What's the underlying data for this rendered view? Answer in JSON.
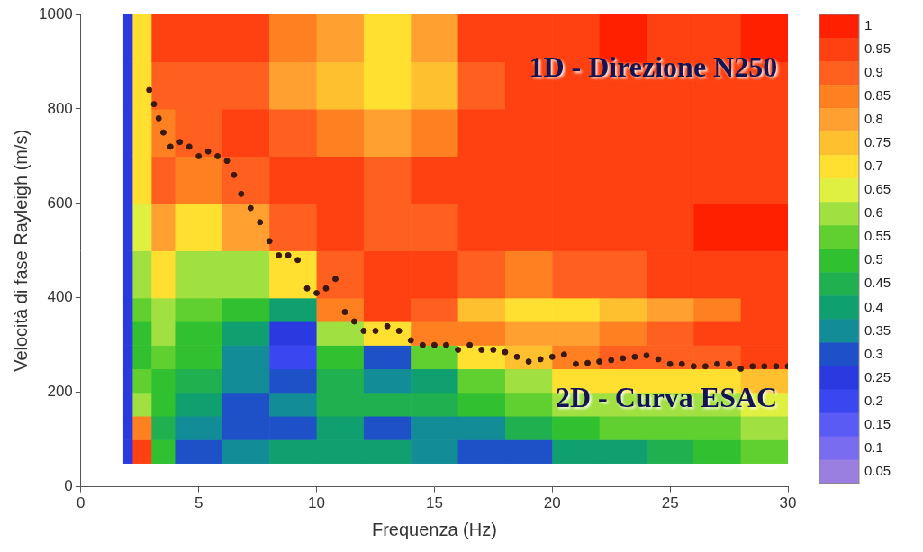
{
  "chart_data": {
    "type": "heatmap",
    "x_label": "Frequenza (Hz)",
    "y_label": "Velocità di fase Rayleigh (m/s)",
    "annotations": [
      "1D - Direzione N250",
      "2D - Curva ESAC"
    ],
    "xlim": [
      0,
      30
    ],
    "xticks": [
      0,
      5,
      10,
      15,
      20,
      25,
      30
    ],
    "ylim": [
      0,
      1000
    ],
    "yticks": [
      0,
      200,
      400,
      600,
      800,
      1000
    ],
    "grid": false,
    "cells": {
      "x_edges": [
        1.8,
        2.2,
        3,
        4,
        6,
        8,
        10,
        12,
        14,
        16,
        18,
        20,
        22,
        24,
        26,
        28,
        30
      ],
      "y_edges": [
        50,
        100,
        150,
        200,
        250,
        300,
        350,
        400,
        500,
        600,
        700,
        800,
        900,
        1000
      ],
      "values": [
        [
          0.25,
          0.25,
          0.25,
          0.25,
          0.25,
          0.25,
          0.25,
          0.25,
          0.25,
          0.25,
          0.25,
          0.25,
          0.25
        ],
        [
          0.95,
          0.85,
          0.6,
          0.55,
          0.5,
          0.5,
          0.55,
          0.6,
          0.65,
          0.7,
          0.7,
          0.7,
          0.7
        ],
        [
          0.5,
          0.45,
          0.5,
          0.5,
          0.55,
          0.6,
          0.6,
          0.7,
          0.8,
          0.9,
          0.85,
          0.9,
          0.95
        ],
        [
          0.3,
          0.35,
          0.4,
          0.45,
          0.5,
          0.5,
          0.55,
          0.6,
          0.7,
          0.85,
          0.9,
          0.9,
          0.95
        ],
        [
          0.35,
          0.3,
          0.3,
          0.35,
          0.35,
          0.4,
          0.5,
          0.6,
          0.8,
          0.9,
          0.95,
          0.9,
          0.95
        ],
        [
          0.4,
          0.3,
          0.35,
          0.3,
          0.2,
          0.25,
          0.4,
          0.7,
          0.9,
          0.95,
          0.9,
          0.8,
          0.85
        ],
        [
          0.4,
          0.4,
          0.45,
          0.45,
          0.5,
          0.6,
          0.85,
          0.9,
          0.95,
          0.95,
          0.85,
          0.75,
          0.8
        ],
        [
          0.4,
          0.3,
          0.45,
          0.35,
          0.3,
          0.7,
          0.95,
          0.95,
          0.9,
          0.9,
          0.8,
          0.7,
          0.7
        ],
        [
          0.35,
          0.35,
          0.45,
          0.4,
          0.55,
          0.85,
          0.9,
          0.95,
          0.9,
          0.95,
          0.85,
          0.75,
          0.8
        ],
        [
          0.3,
          0.35,
          0.5,
          0.55,
          0.7,
          0.85,
          0.75,
          0.9,
          0.95,
          0.95,
          0.95,
          0.9,
          0.95
        ],
        [
          0.3,
          0.45,
          0.55,
          0.6,
          0.75,
          0.8,
          0.7,
          0.85,
          0.95,
          0.95,
          0.95,
          0.95,
          0.95
        ],
        [
          0.4,
          0.5,
          0.6,
          0.7,
          0.85,
          0.8,
          0.7,
          0.9,
          0.95,
          0.95,
          0.95,
          0.95,
          0.95
        ],
        [
          0.4,
          0.55,
          0.6,
          0.7,
          0.9,
          0.85,
          0.75,
          0.9,
          0.95,
          0.95,
          0.95,
          0.95,
          1
        ],
        [
          0.45,
          0.55,
          0.6,
          0.7,
          0.9,
          0.9,
          0.8,
          0.95,
          0.95,
          0.95,
          0.95,
          0.95,
          0.95
        ],
        [
          0.5,
          0.55,
          0.6,
          0.7,
          0.9,
          0.95,
          0.85,
          0.95,
          1,
          0.95,
          0.95,
          0.95,
          0.95
        ],
        [
          0.55,
          0.6,
          0.65,
          0.75,
          0.95,
          0.95,
          0.95,
          0.95,
          1,
          0.95,
          0.95,
          0.95,
          1
        ]
      ]
    },
    "colorbar": {
      "range": [
        0.05,
        1
      ],
      "ticks": [
        1,
        0.95,
        0.9,
        0.85,
        0.8,
        0.75,
        0.7,
        0.65,
        0.6,
        0.55,
        0.5,
        0.45,
        0.4,
        0.35,
        0.3,
        0.25,
        0.2,
        0.15,
        0.1,
        0.05
      ]
    },
    "series": [
      {
        "type": "scatter",
        "marker": "circle",
        "color": "#3a1a10",
        "x": [
          2.9,
          3.1,
          3.3,
          3.5,
          3.8,
          4.2,
          4.6,
          5,
          5.4,
          5.8,
          6.2,
          6.5,
          6.8,
          7.2,
          7.6,
          8,
          8.4,
          8.8,
          9.2,
          9.6,
          10,
          10.4,
          10.8,
          11.2,
          11.6,
          12,
          12.5,
          13,
          13.5,
          14,
          14.5,
          15,
          15.5,
          16,
          16.5,
          17,
          17.5,
          18,
          18.5,
          19,
          19.5,
          20,
          20.5,
          21,
          21.5,
          22,
          22.5,
          23,
          23.5,
          24,
          24.5,
          25,
          25.5,
          26,
          26.5,
          27,
          27.5,
          28,
          28.5,
          29,
          29.5,
          30
        ],
        "values": [
          840,
          810,
          780,
          750,
          720,
          730,
          720,
          700,
          710,
          700,
          690,
          660,
          620,
          590,
          560,
          520,
          490,
          490,
          480,
          420,
          410,
          420,
          440,
          370,
          350,
          330,
          330,
          340,
          330,
          310,
          300,
          300,
          300,
          290,
          300,
          290,
          290,
          285,
          275,
          265,
          270,
          275,
          280,
          260,
          262,
          265,
          268,
          272,
          275,
          278,
          270,
          260,
          260,
          255,
          255,
          260,
          260,
          250,
          255,
          255,
          255,
          255
        ]
      }
    ]
  }
}
